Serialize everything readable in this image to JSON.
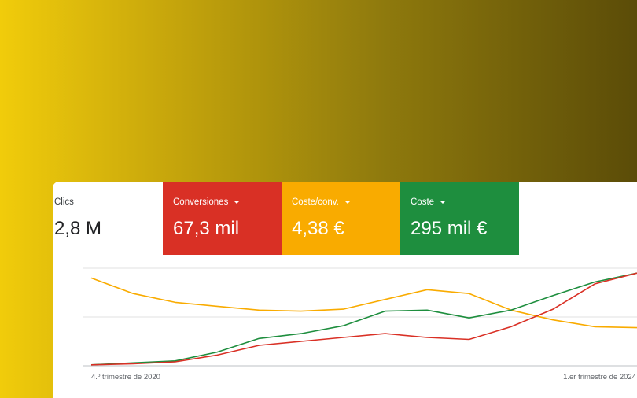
{
  "metrics": [
    {
      "label": "Clics",
      "value": "2,8 M",
      "color": "#ffffff",
      "dropdown": false
    },
    {
      "label": "Conversiones",
      "value": "67,3 mil",
      "color": "#d93025",
      "dropdown": true
    },
    {
      "label": "Coste/conv.",
      "value": "4,38 €",
      "color": "#f9ab00",
      "dropdown": true
    },
    {
      "label": "Coste",
      "value": "295 mil €",
      "color": "#1e8e3e",
      "dropdown": true
    }
  ],
  "chart_data": {
    "type": "line",
    "x_start_label": "4.º trimestre de 2020",
    "x_end_label": "1.er trimestre de 2024",
    "grid": true,
    "ylim": [
      0,
      100
    ],
    "series": [
      {
        "color": "#f9ab00",
        "values": [
          90,
          74,
          65,
          61,
          57,
          56,
          58,
          68,
          78,
          74,
          57,
          47,
          40,
          39
        ]
      },
      {
        "color": "#1e8e3e",
        "values": [
          1,
          3,
          5,
          14,
          28,
          33,
          41,
          56,
          57,
          49,
          57,
          72,
          86,
          95
        ]
      },
      {
        "color": "#d93025",
        "values": [
          1,
          2,
          4,
          11,
          21,
          25,
          29,
          33,
          29,
          27,
          40,
          58,
          84,
          95
        ]
      }
    ]
  }
}
